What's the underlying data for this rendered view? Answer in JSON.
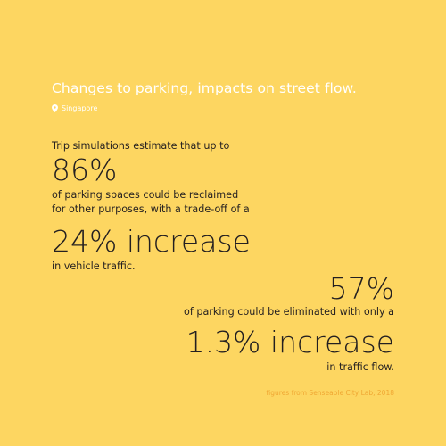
{
  "title": "Changes to parking, impacts on street flow.",
  "location": {
    "icon": "location-pin-icon",
    "label": "Singapore"
  },
  "stat1": {
    "intro": "Trip simulations estimate that up to",
    "value": "86%",
    "line1": "of parking spaces could be reclaimed",
    "line2": "for other purposes, with a trade-off of a",
    "increase": "24% increase",
    "outro": "in vehicle traffic."
  },
  "stat2": {
    "value": "57%",
    "line1": "of parking could be eliminated with only a",
    "increase": "1.3% increase",
    "outro": "in traffic flow."
  },
  "credit": "figures from Senseable City Lab, 2018",
  "colors": {
    "background": "#fdd661",
    "text": "#231f20",
    "title": "#ffffff",
    "credit": "#f0a733"
  }
}
